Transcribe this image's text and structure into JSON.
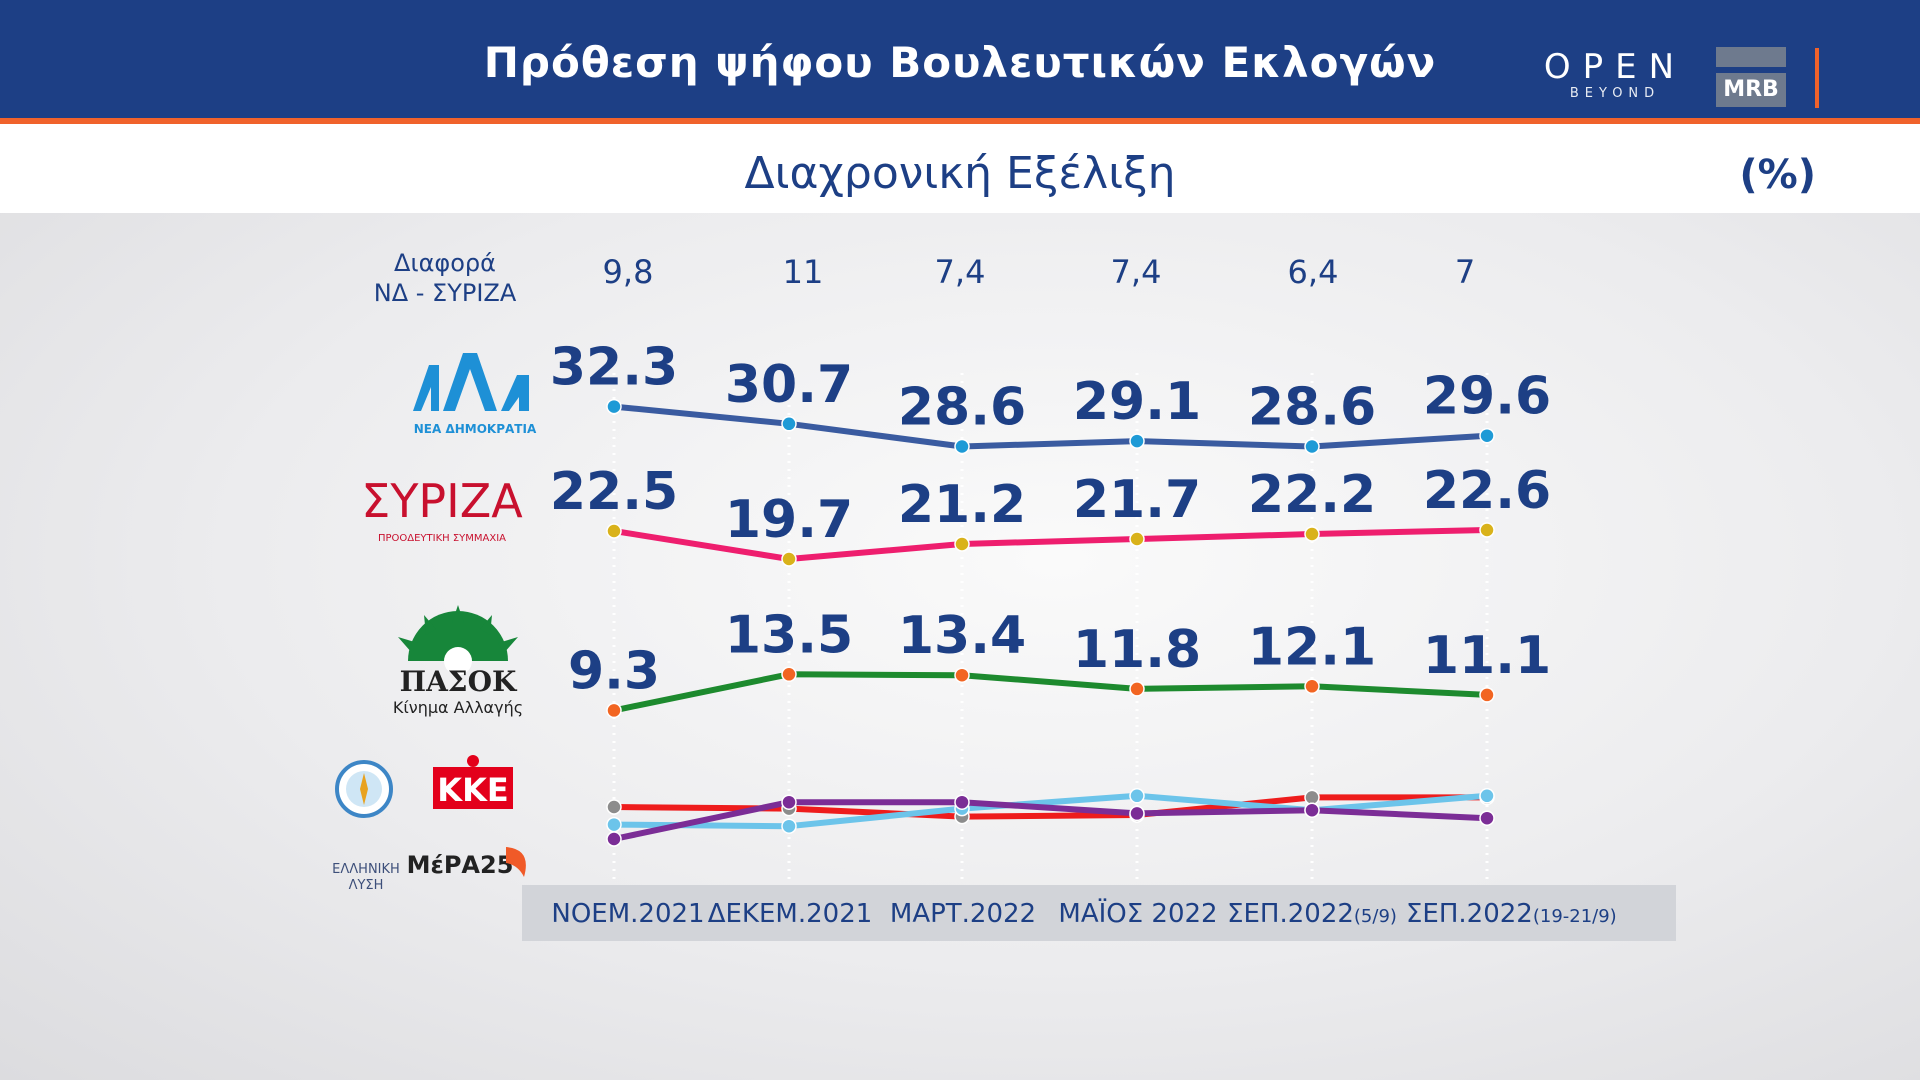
{
  "header": {
    "title": "Πρόθεση ψήφου Βουλευτικών Εκλογών",
    "open_logo_word": "OPEN",
    "open_logo_sub": "BEYOND",
    "mrb_logo": "MRB"
  },
  "subheader": {
    "subtitle": "Διαχρονική Εξέλιξη",
    "unit": "(%)"
  },
  "diff": {
    "label_line1": "Διαφορά",
    "label_line2": "ΝΔ - ΣΥΡΙΖΑ",
    "values": [
      "9,8",
      "11",
      "7,4",
      "7,4",
      "6,4",
      "7"
    ]
  },
  "logos": {
    "nd": "ΝΕΑ ΔΗΜΟΚΡΑΤΙΑ",
    "syriza": "ΣΥΡΙΖΑ",
    "syriza_sub": "ΠΡΟΟΔΕΥΤΙΚΗ ΣΥΜΜΑΧΙΑ",
    "pasok": "ΠΑΣΟΚ",
    "pasok_sub": "Κίνημα Αλλαγής",
    "kke": "ΚΚΕ",
    "mera25": "ΜέΡΑ25",
    "elliniki_lysi_1": "ΕΛΛΗΝΙΚΗ",
    "elliniki_lysi_2": "ΛΥΣΗ"
  },
  "chart_data": {
    "type": "line",
    "categories": [
      "ΝΟΕΜ.2021",
      "ΔΕΚΕΜ.2021",
      "ΜΑΡΤ.2022",
      "ΜΑΪΟΣ 2022",
      "ΣΕΠ.2022(5/9)",
      "ΣΕΠ.2022(19-21/9)"
    ],
    "x_ticks": [
      {
        "main": "ΝΟΕΜ.2021",
        "small": ""
      },
      {
        "main": "ΔΕΚΕΜ.2021",
        "small": ""
      },
      {
        "main": "ΜΑΡΤ.2022",
        "small": ""
      },
      {
        "main": "ΜΑΪΟΣ 2022",
        "small": ""
      },
      {
        "main": "ΣΕΠ.2022",
        "small": "(5/9)"
      },
      {
        "main": "ΣΕΠ.2022",
        "small": "(19-21/9)"
      }
    ],
    "series": [
      {
        "key": "nd",
        "labeled": true,
        "values": [
          32.3,
          30.7,
          28.6,
          29.1,
          28.6,
          29.6
        ],
        "labels": [
          "32.3",
          "30.7",
          "28.6",
          "29.1",
          "28.6",
          "29.6"
        ],
        "color": "#3a5ba0",
        "marker": "#1e9ad6"
      },
      {
        "key": "syriza",
        "labeled": true,
        "values": [
          22.5,
          19.7,
          21.2,
          21.7,
          22.2,
          22.6
        ],
        "labels": [
          "22.5",
          "19.7",
          "21.2",
          "21.7",
          "22.2",
          "22.6"
        ],
        "color": "#ee1e6e",
        "marker": "#d9b21a"
      },
      {
        "key": "pasok",
        "labeled": true,
        "values": [
          9.3,
          13.5,
          13.4,
          11.8,
          12.1,
          11.1
        ],
        "labels": [
          "9.3",
          "13.5",
          "13.4",
          "11.8",
          "12.1",
          "11.1"
        ],
        "color": "#1d8a2e",
        "marker": "#f26522"
      },
      {
        "key": "kke",
        "labeled": false,
        "values": [
          5.5,
          5.4,
          4.9,
          5.0,
          6.1,
          6.1
        ],
        "color": "#ee1c1c",
        "marker": "#8c8c8c"
      },
      {
        "key": "elliniki_lysi",
        "labeled": false,
        "values": [
          4.4,
          4.3,
          5.4,
          6.2,
          5.3,
          6.2
        ],
        "color": "#6cc4ea",
        "marker": "#6cc4ea"
      },
      {
        "key": "mera25",
        "labeled": false,
        "values": [
          3.5,
          5.8,
          5.8,
          5.1,
          5.3,
          4.8
        ],
        "color": "#7b2d96",
        "marker": "#7b2d96"
      }
    ],
    "grid": "vertical dotted",
    "legend": "party logos on the left"
  }
}
